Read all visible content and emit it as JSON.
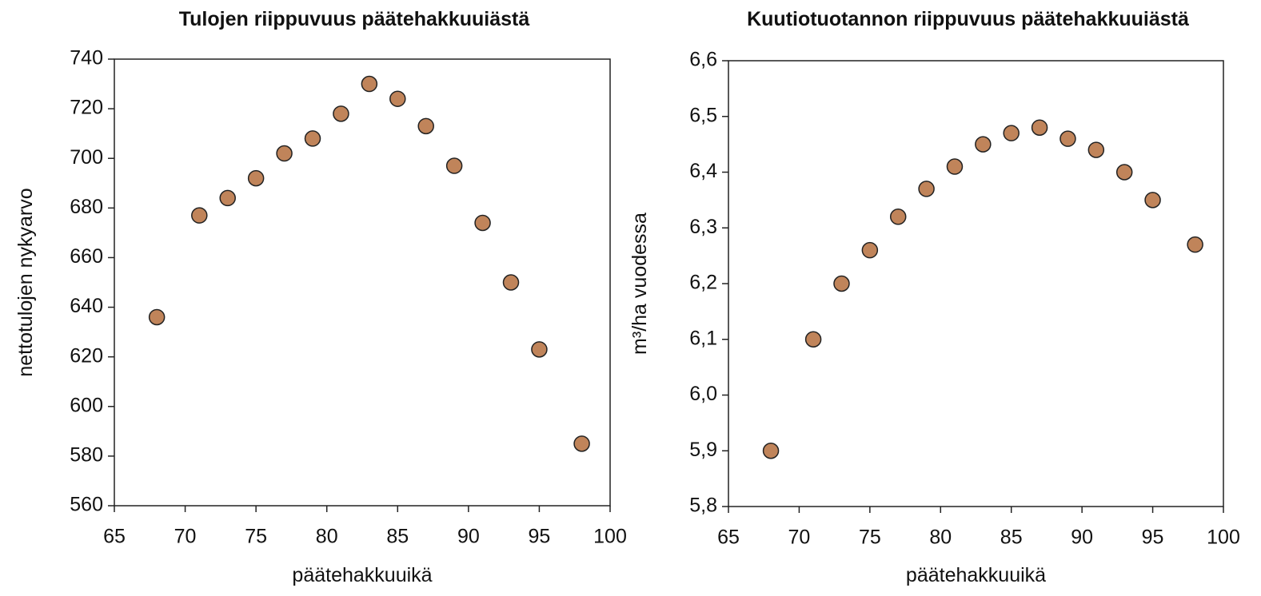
{
  "chart_data": [
    {
      "type": "scatter",
      "title": "Tulojen riippuvuus päätehakkuuiästä",
      "x_label": "päätehakkuuikä",
      "y_label": "nettotulojen nykyarvo",
      "x": [
        68,
        71,
        73,
        75,
        77,
        79,
        81,
        83,
        85,
        87,
        89,
        91,
        93,
        95,
        98
      ],
      "values": [
        636,
        677,
        684,
        692,
        702,
        708,
        718,
        730,
        724,
        713,
        697,
        674,
        650,
        623,
        585
      ],
      "color": "#c0845a",
      "xlim": [
        65,
        100
      ],
      "xticks": [
        65,
        70,
        75,
        80,
        85,
        90,
        95,
        100
      ],
      "ylim": [
        560,
        740
      ],
      "yticks": [
        560,
        580,
        600,
        620,
        640,
        660,
        680,
        700,
        720,
        740
      ]
    },
    {
      "type": "scatter",
      "title": "Kuutiotuotannon riippuvuus päätehakkuuiästä",
      "x_label": "päätehakkuuikä",
      "y_label": "m³/ha vuodessa",
      "x": [
        68,
        71,
        73,
        75,
        77,
        79,
        81,
        83,
        85,
        87,
        89,
        91,
        93,
        95,
        98
      ],
      "values": [
        5.9,
        6.1,
        6.2,
        6.26,
        6.32,
        6.37,
        6.41,
        6.45,
        6.47,
        6.48,
        6.46,
        6.44,
        6.4,
        6.35,
        6.27
      ],
      "color": "#c0845a",
      "xlim": [
        65,
        100
      ],
      "xticks": [
        65,
        70,
        75,
        80,
        85,
        90,
        95,
        100
      ],
      "ylim": [
        5.8,
        6.6
      ],
      "yticks": [
        {
          "value": 5.8,
          "label": "5,8"
        },
        {
          "value": 5.9,
          "label": "5,9"
        },
        {
          "value": 6.0,
          "label": "6,0"
        },
        {
          "value": 6.1,
          "label": "6,1"
        },
        {
          "value": 6.2,
          "label": "6,2"
        },
        {
          "value": 6.3,
          "label": "6,3"
        },
        {
          "value": 6.4,
          "label": "6,4"
        },
        {
          "value": 6.5,
          "label": "6,5"
        },
        {
          "value": 6.6,
          "label": "6,6"
        }
      ]
    }
  ]
}
